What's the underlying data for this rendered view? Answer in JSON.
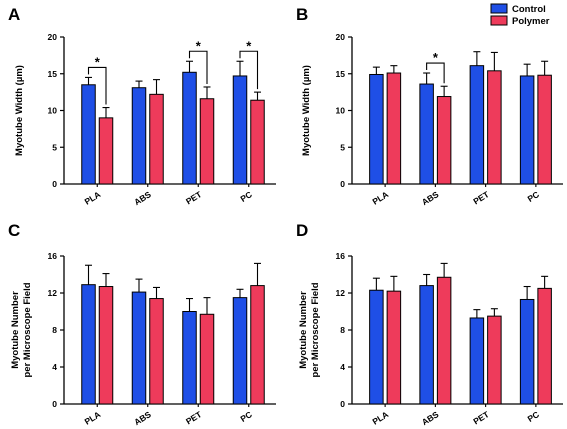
{
  "legend": {
    "entries": [
      {
        "name": "Control",
        "color": "#1f4fe6"
      },
      {
        "name": "Polymer",
        "color": "#ee3b5b"
      }
    ],
    "placement": "top-right"
  },
  "chart_data": [
    {
      "panel": "A",
      "type": "bar",
      "ylabel": "Myotube Width (µm)",
      "ylim": [
        0,
        20
      ],
      "yticks": [
        "0",
        "5",
        "10",
        "15",
        "20"
      ],
      "yticks_values": [
        0,
        5,
        10,
        15,
        20
      ],
      "categories": [
        "PLA",
        "ABS",
        "PET",
        "PC"
      ],
      "series": [
        {
          "name": "Control",
          "values": [
            13.5,
            13.1,
            15.2,
            14.7
          ],
          "errors": [
            1.0,
            0.9,
            1.5,
            2.0
          ]
        },
        {
          "name": "Polymer",
          "values": [
            9.0,
            12.2,
            11.6,
            11.4
          ],
          "errors": [
            1.4,
            2.0,
            1.6,
            1.1
          ]
        }
      ],
      "significance": [
        {
          "category": "PLA",
          "label": "*"
        },
        {
          "category": "PET",
          "label": "*"
        },
        {
          "category": "PC",
          "label": "*"
        }
      ],
      "grid": false
    },
    {
      "panel": "B",
      "type": "bar",
      "ylabel": "Myotube Width (µm)",
      "ylim": [
        0,
        20
      ],
      "yticks": [
        "0",
        "5",
        "10",
        "15",
        "20"
      ],
      "yticks_values": [
        0,
        5,
        10,
        15,
        20
      ],
      "categories": [
        "PLA",
        "ABS",
        "PET",
        "PC"
      ],
      "series": [
        {
          "name": "Control",
          "values": [
            14.9,
            13.6,
            16.1,
            14.7
          ],
          "errors": [
            1.0,
            1.5,
            1.9,
            1.6
          ]
        },
        {
          "name": "Polymer",
          "values": [
            15.1,
            11.9,
            15.4,
            14.8
          ],
          "errors": [
            1.0,
            1.4,
            2.5,
            1.9
          ]
        }
      ],
      "significance": [
        {
          "category": "ABS",
          "label": "*"
        }
      ],
      "grid": false
    },
    {
      "panel": "C",
      "type": "bar",
      "ylabel": "Myotube Number per Microscope Field",
      "ylabel_lines": [
        "Myotube Number",
        "per Microscope Field"
      ],
      "ylim": [
        0,
        16
      ],
      "yticks": [
        "0",
        "4",
        "8",
        "12",
        "16"
      ],
      "yticks_values": [
        0,
        4,
        8,
        12,
        16
      ],
      "categories": [
        "PLA",
        "ABS",
        "PET",
        "PC"
      ],
      "series": [
        {
          "name": "Control",
          "values": [
            12.9,
            12.1,
            10.0,
            11.5
          ],
          "errors": [
            2.1,
            1.4,
            1.4,
            0.9
          ]
        },
        {
          "name": "Polymer",
          "values": [
            12.7,
            11.4,
            9.7,
            12.8
          ],
          "errors": [
            1.4,
            1.2,
            1.8,
            2.4
          ]
        }
      ],
      "significance": [],
      "grid": false
    },
    {
      "panel": "D",
      "type": "bar",
      "ylabel": "Myotube Number per Microscope Field",
      "ylabel_lines": [
        "Myotube Number",
        "per Microscope Field"
      ],
      "ylim": [
        0,
        16
      ],
      "yticks": [
        "0",
        "4",
        "8",
        "12",
        "16"
      ],
      "yticks_values": [
        0,
        4,
        8,
        12,
        16
      ],
      "categories": [
        "PLA",
        "ABS",
        "PET",
        "PC"
      ],
      "series": [
        {
          "name": "Control",
          "values": [
            12.3,
            12.8,
            9.3,
            11.3
          ],
          "errors": [
            1.3,
            1.2,
            0.9,
            1.4
          ]
        },
        {
          "name": "Polymer",
          "values": [
            12.2,
            13.7,
            9.5,
            12.5
          ],
          "errors": [
            1.6,
            1.5,
            0.8,
            1.3
          ]
        }
      ],
      "significance": [],
      "grid": false
    }
  ]
}
